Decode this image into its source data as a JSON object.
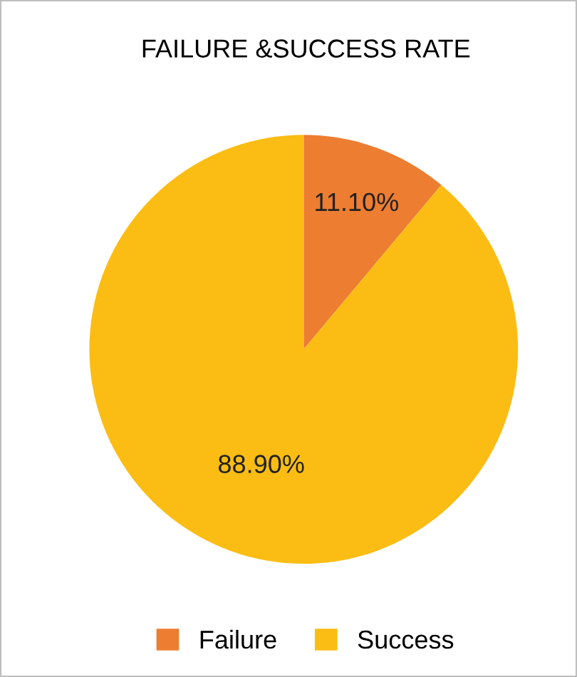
{
  "chart_data": {
    "type": "pie",
    "title": "FAILURE &SUCCESS RATE",
    "categories": [
      "Failure",
      "Success"
    ],
    "values": [
      11.1,
      88.9
    ],
    "colors": [
      "#ed7d31",
      "#fbbd14"
    ],
    "value_labels": [
      "11.10%",
      "88.90%"
    ],
    "legend": "bottom"
  }
}
